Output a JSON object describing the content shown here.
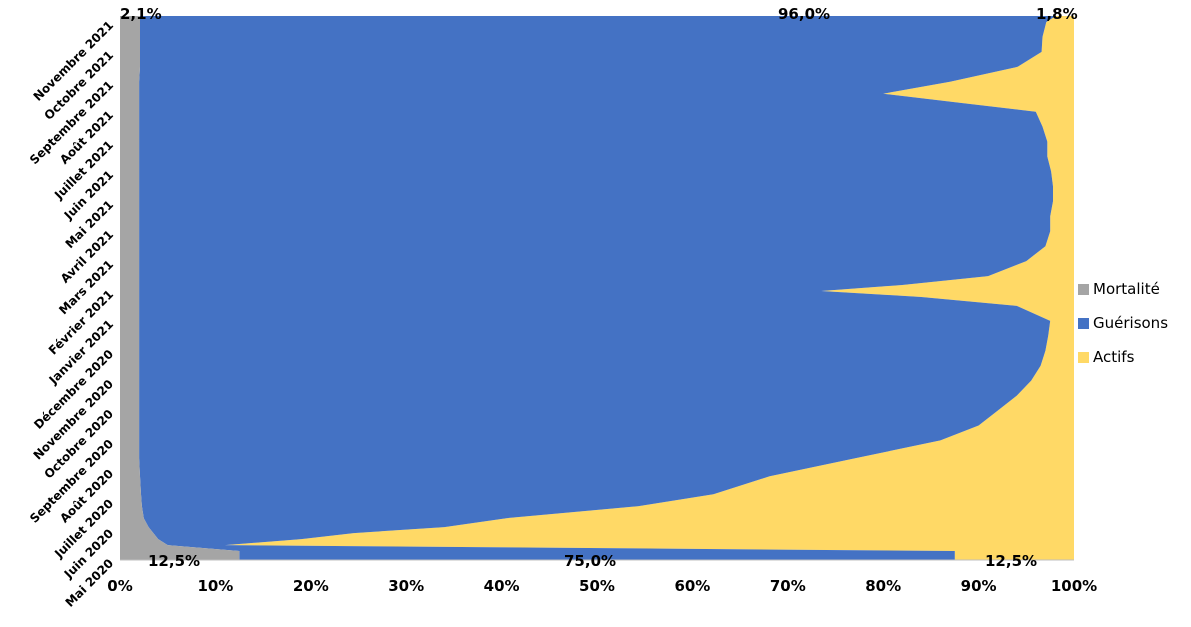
{
  "chart_data": {
    "type": "area",
    "orientation": "horizontal",
    "stacked": "percent",
    "xlim": [
      0,
      100
    ],
    "x_ticks": [
      "0%",
      "10%",
      "20%",
      "30%",
      "40%",
      "50%",
      "60%",
      "70%",
      "80%",
      "90%",
      "100%"
    ],
    "y_ticks": [
      "Mai 2020",
      "Juin 2020",
      "Juillet 2020",
      "Août 2020",
      "Septembre 2020",
      "Octobre 2020",
      "Novembre 2020",
      "Décembre 2020",
      "Janvier 2021",
      "Février 2021",
      "Mars 2021",
      "Avril 2021",
      "Mai 2021",
      "Juin 2021",
      "Juillet 2021",
      "Août 2021",
      "Septembre 2021",
      "Octobre 2021",
      "Novembre 2021"
    ],
    "series": [
      {
        "name": "Mortalité",
        "color": "#a5a5a5"
      },
      {
        "name": "Guérisons",
        "color": "#4472c4"
      },
      {
        "name": "Actifs",
        "color": "#ffd966"
      }
    ],
    "t": [
      0,
      0.3,
      0.5,
      0.7,
      0.9,
      1.1,
      1.4,
      1.8,
      2.2,
      2.8,
      3.4,
      4.0,
      4.5,
      5.0,
      5.5,
      6.0,
      6.5,
      7.0,
      7.5,
      8.0,
      8.5,
      8.8,
      9.0,
      9.2,
      9.5,
      10.0,
      10.5,
      11.0,
      11.5,
      12.0,
      12.5,
      13.0,
      13.5,
      14.0,
      14.5,
      15.0,
      15.3,
      15.6,
      16.0,
      16.5,
      17.0,
      17.5,
      18.0,
      18.2
    ],
    "mortalite": [
      12.5,
      12.5,
      5.0,
      4.0,
      3.5,
      3.0,
      2.5,
      2.3,
      2.2,
      2.1,
      2.0,
      2.0,
      2.0,
      2.0,
      2.0,
      2.0,
      2.0,
      2.0,
      2.0,
      2.0,
      2.0,
      2.0,
      2.0,
      2.0,
      2.0,
      2.0,
      2.0,
      2.0,
      2.0,
      2.0,
      2.0,
      2.0,
      2.0,
      2.0,
      2.0,
      2.0,
      2.0,
      2.0,
      2.0,
      2.1,
      2.1,
      2.1,
      2.1,
      2.1
    ],
    "guerisons": [
      75.0,
      75.0,
      6.0,
      15.0,
      21.0,
      31.0,
      38.0,
      52.0,
      60.0,
      66.0,
      75.0,
      84.0,
      88.0,
      90.0,
      92.0,
      93.5,
      94.5,
      95.0,
      95.3,
      95.5,
      92.0,
      82.0,
      71.5,
      80.0,
      89.0,
      93.0,
      95.0,
      95.5,
      95.5,
      95.8,
      95.8,
      95.6,
      95.2,
      95.2,
      94.7,
      94.0,
      86.0,
      78.0,
      85.0,
      92.0,
      94.5,
      94.6,
      95.0,
      96.0
    ],
    "annotations": {
      "top_left": "2,1%",
      "top_mid": "96,0%",
      "top_right": "1,8%",
      "bottom_left": "12,5%",
      "bottom_mid": "75,0%",
      "bottom_right": "12,5%"
    },
    "legend_position": "right",
    "grid": false
  }
}
